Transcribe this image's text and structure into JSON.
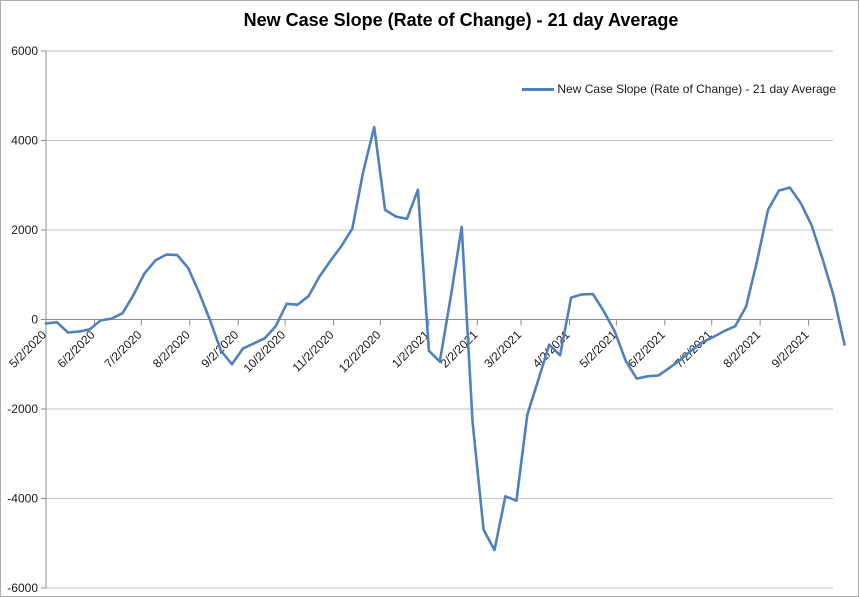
{
  "chart": {
    "title": "New Case Slope (Rate of Change) - 21 day Average",
    "legend": {
      "label": "New Case Slope (Rate of Change) - 21 day Average"
    },
    "colors": {
      "series": "#4f81bd",
      "gridline": "#c6c6c6",
      "axis": "#8c8c8c",
      "tick_text": "#1a1a1a",
      "title_text": "#000000"
    }
  },
  "chart_data": {
    "type": "line",
    "title": "New Case Slope (Rate of Change) - 21 day Average",
    "xlabel": "",
    "ylabel": "",
    "ylim": [
      -6000,
      6000
    ],
    "y_ticks": [
      6000,
      4000,
      2000,
      0,
      -2000,
      -4000,
      -6000
    ],
    "x_tick_labels": [
      "5/2/2020",
      "6/2/2020",
      "7/2/2020",
      "8/2/2020",
      "9/2/2020",
      "10/2/2020",
      "11/2/2020",
      "12/2/2020",
      "1/2/2021",
      "2/2/2021",
      "3/2/2021",
      "4/2/2021",
      "5/2/2021",
      "6/2/2021",
      "7/2/2021",
      "8/2/2021",
      "9/2/2021"
    ],
    "grid": true,
    "legend_position": "top-right",
    "series": [
      {
        "name": "New Case Slope (Rate of Change) - 21 day Average",
        "x": [
          "5/2/2020",
          "5/9/2020",
          "5/16/2020",
          "5/23/2020",
          "5/30/2020",
          "6/6/2020",
          "6/13/2020",
          "6/20/2020",
          "6/27/2020",
          "7/4/2020",
          "7/11/2020",
          "7/18/2020",
          "7/25/2020",
          "8/1/2020",
          "8/8/2020",
          "8/15/2020",
          "8/22/2020",
          "8/29/2020",
          "9/5/2020",
          "9/12/2020",
          "9/19/2020",
          "9/26/2020",
          "10/3/2020",
          "10/10/2020",
          "10/17/2020",
          "10/24/2020",
          "10/31/2020",
          "11/7/2020",
          "11/14/2020",
          "11/21/2020",
          "11/28/2020",
          "12/5/2020",
          "12/12/2020",
          "12/19/2020",
          "12/26/2020",
          "1/2/2021",
          "1/9/2021",
          "1/16/2021",
          "1/23/2021",
          "1/30/2021",
          "2/6/2021",
          "2/13/2021",
          "2/20/2021",
          "2/27/2021",
          "3/6/2021",
          "3/13/2021",
          "3/20/2021",
          "3/27/2021",
          "4/3/2021",
          "4/10/2021",
          "4/17/2021",
          "4/24/2021",
          "5/1/2021",
          "5/8/2021",
          "5/15/2021",
          "5/22/2021",
          "5/29/2021",
          "6/5/2021",
          "6/12/2021",
          "6/19/2021",
          "6/26/2021",
          "7/3/2021",
          "7/10/2021",
          "7/17/2021",
          "7/24/2021",
          "7/31/2021",
          "8/7/2021",
          "8/14/2021",
          "8/21/2021",
          "8/28/2021",
          "9/4/2021",
          "9/11/2021",
          "9/18/2021",
          "9/25/2021"
        ],
        "values": [
          -90,
          -60,
          -290,
          -270,
          -220,
          -20,
          20,
          140,
          550,
          1030,
          1320,
          1450,
          1440,
          1150,
          600,
          -20,
          -700,
          -1000,
          -650,
          -535,
          -420,
          -150,
          350,
          330,
          520,
          960,
          1310,
          1640,
          2030,
          3300,
          4300,
          2450,
          2300,
          2250,
          2900,
          -700,
          -940,
          500,
          2070,
          -2300,
          -4700,
          -5150,
          -3950,
          -4050,
          -2130,
          -1350,
          -560,
          -800,
          490,
          560,
          570,
          180,
          -270,
          -930,
          -1320,
          -1270,
          -1250,
          -1080,
          -900,
          -690,
          -510,
          -390,
          -260,
          -150,
          290,
          1300,
          2450,
          2880,
          2950,
          2600,
          2100,
          1340,
          530,
          -560
        ]
      }
    ]
  }
}
